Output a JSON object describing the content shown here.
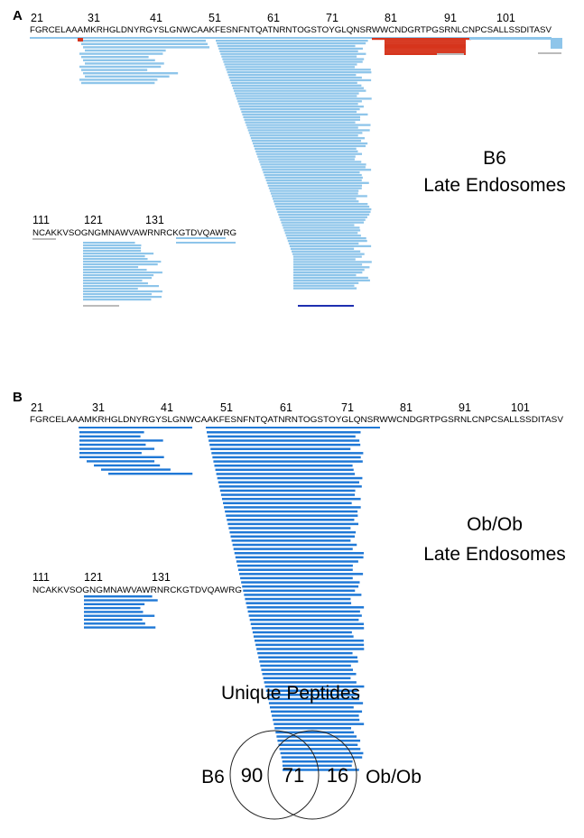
{
  "colors": {
    "peptide_a": "#8ec5ea",
    "peptide_b": "#1f78d6",
    "red_region": "#d6341c",
    "grey_stub": "#bbbbbb",
    "dark_blue": "#1f2fb0",
    "text": "#111111"
  },
  "panel_a": {
    "letter": "A",
    "positions_main": [
      "21",
      "31",
      "41",
      "51",
      "61",
      "71",
      "81",
      "91",
      "101"
    ],
    "sequence_main": "FGRCELAAAMKRHGLDNYRGYSLGNWCAAKFESNFNTQATNRNTOGSTOYGLQNSRWWCNDGRTPGSRNLCNPCSALLSSDITASV",
    "positions_sub": [
      "111",
      "121",
      "131"
    ],
    "sequence_sub": "NCAKKVSOGNGMNAWVAWRNRCKGTDVQAWRG",
    "label_line1": "B6",
    "label_line2": "Late Endosomes"
  },
  "panel_b": {
    "letter": "B",
    "positions_main": [
      "21",
      "31",
      "41",
      "51",
      "61",
      "71",
      "81",
      "91",
      "101"
    ],
    "sequence_main": "FGRCELAAAMKRHGLDNYRGYSLGNWCAAKFESNFNTQATNRNTOGSTOYGLQNSRWWCNDGRTPGSRNLCNPCSALLSSDITASV",
    "positions_sub": [
      "111",
      "121",
      "131"
    ],
    "sequence_sub": "NCAKKVSOGNGMNAWVAWRNRCKGTDVQAWRG",
    "label_line1": "Ob/Ob",
    "label_line2": "Late Endosomes"
  },
  "venn": {
    "title": "Unique Peptides",
    "left_label": "B6",
    "right_label": "Ob/Ob",
    "left_only": "90",
    "shared": "71",
    "right_only": "16"
  }
}
